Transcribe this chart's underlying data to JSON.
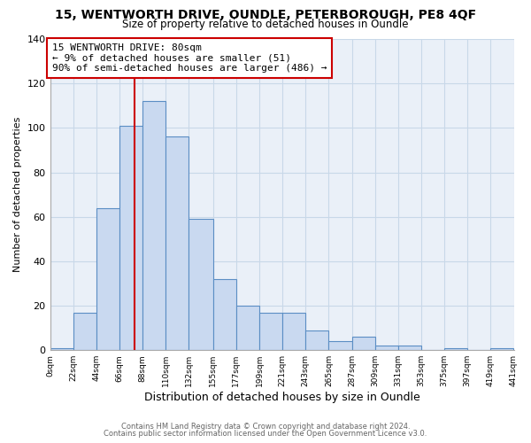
{
  "title": "15, WENTWORTH DRIVE, OUNDLE, PETERBOROUGH, PE8 4QF",
  "subtitle": "Size of property relative to detached houses in Oundle",
  "xlabel": "Distribution of detached houses by size in Oundle",
  "ylabel": "Number of detached properties",
  "bin_edges": [
    0,
    22,
    44,
    66,
    88,
    110,
    132,
    155,
    177,
    199,
    221,
    243,
    265,
    287,
    309,
    331,
    353,
    375,
    397,
    419,
    441
  ],
  "bar_heights": [
    1,
    17,
    64,
    101,
    112,
    96,
    59,
    32,
    20,
    17,
    17,
    9,
    4,
    6,
    2,
    2,
    0,
    1,
    0,
    1
  ],
  "bar_color": "#c9d9f0",
  "bar_edge_color": "#5b8ec4",
  "grid_color": "#c8d8e8",
  "plot_bg_color": "#eaf0f8",
  "fig_bg_color": "#ffffff",
  "vline_x": 80,
  "vline_color": "#cc0000",
  "annotation_line1": "15 WENTWORTH DRIVE: 80sqm",
  "annotation_line2": "← 9% of detached houses are smaller (51)",
  "annotation_line3": "90% of semi-detached houses are larger (486) →",
  "annotation_box_edgecolor": "#cc0000",
  "ylim": [
    0,
    140
  ],
  "footer1": "Contains HM Land Registry data © Crown copyright and database right 2024.",
  "footer2": "Contains public sector information licensed under the Open Government Licence v3.0."
}
